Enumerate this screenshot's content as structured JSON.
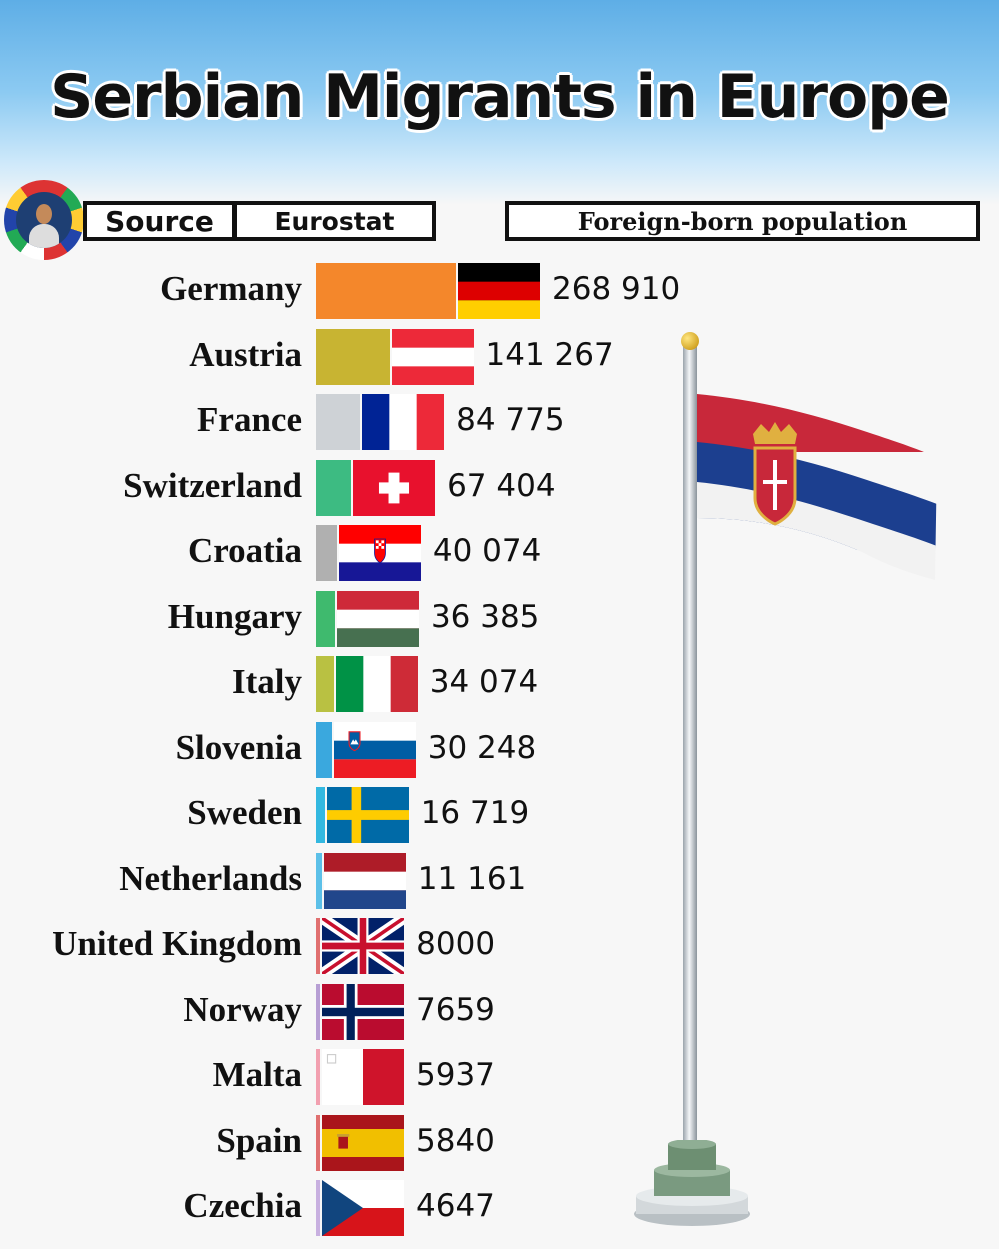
{
  "title": "Serbian Migrants in Europe",
  "source_label": "Source",
  "source_value": "Eurostat",
  "metric_label": "Foreign-born population",
  "chart_data": {
    "type": "bar",
    "orientation": "horizontal",
    "title": "Serbian Migrants in Europe",
    "categories": [
      "Germany",
      "Austria",
      "France",
      "Switzerland",
      "Croatia",
      "Hungary",
      "Italy",
      "Slovenia",
      "Sweden",
      "Netherlands",
      "United Kingdom",
      "Norway",
      "Malta",
      "Spain",
      "Czechia"
    ],
    "values": [
      268910,
      141267,
      84775,
      67404,
      40074,
      36385,
      34074,
      30248,
      16719,
      11161,
      8000,
      7659,
      5937,
      5840,
      4647
    ],
    "value_labels": [
      "268 910",
      "141 267",
      "84 775",
      "67 404",
      "40 074",
      "36 385",
      "34 074",
      "30 248",
      "16 719",
      "11 161",
      "8000",
      "7659",
      "5937",
      "5840",
      "4647"
    ],
    "bar_colors": [
      "#f4872b",
      "#c8b432",
      "#ced2d6",
      "#3dbb82",
      "#b0b0b0",
      "#3fba6e",
      "#b9c142",
      "#3aa8de",
      "#33b8e0",
      "#5cc0e8",
      "#e07070",
      "#b79fd4",
      "#f2a0b0",
      "#e07070",
      "#c8b0e0"
    ],
    "flag_icons": [
      "germany-flag-icon",
      "austria-flag-icon",
      "france-flag-icon",
      "switzerland-flag-icon",
      "croatia-flag-icon",
      "hungary-flag-icon",
      "italy-flag-icon",
      "slovenia-flag-icon",
      "sweden-flag-icon",
      "netherlands-flag-icon",
      "united-kingdom-flag-icon",
      "norway-flag-icon",
      "malta-flag-icon",
      "spain-flag-icon",
      "czechia-flag-icon"
    ]
  }
}
